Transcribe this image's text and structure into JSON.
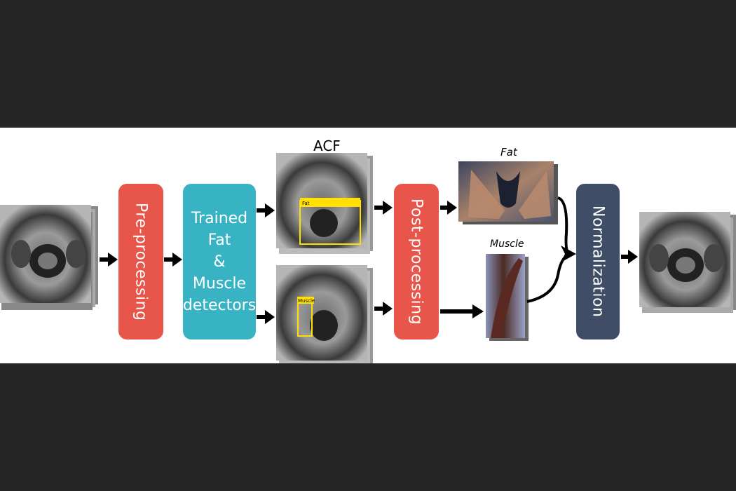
{
  "colors": {
    "background": "#262626",
    "panel": "#ffffff",
    "preprocessing": "#e8554a",
    "detectors": "#37b3c4",
    "postprocessing": "#e8554a",
    "normalization": "#3f4d67",
    "detection_box": "#ffe000",
    "arrow": "#000000"
  },
  "steps": {
    "preprocessing": "Pre-processing",
    "detectors": [
      "Trained",
      "Fat",
      "&",
      "Muscle",
      "detectors"
    ],
    "postprocessing": "Post-processing",
    "normalization": "Normalization"
  },
  "labels": {
    "acf": "ACF",
    "fat_output": "Fat",
    "muscle_output": "Muscle",
    "fat_box": "Fat",
    "muscle_box": "Muscle"
  },
  "icons": {
    "input_stack": "mri-slice-stack-icon",
    "output_stack": "mri-slice-stack-icon",
    "arrow": "arrow-right-icon"
  }
}
